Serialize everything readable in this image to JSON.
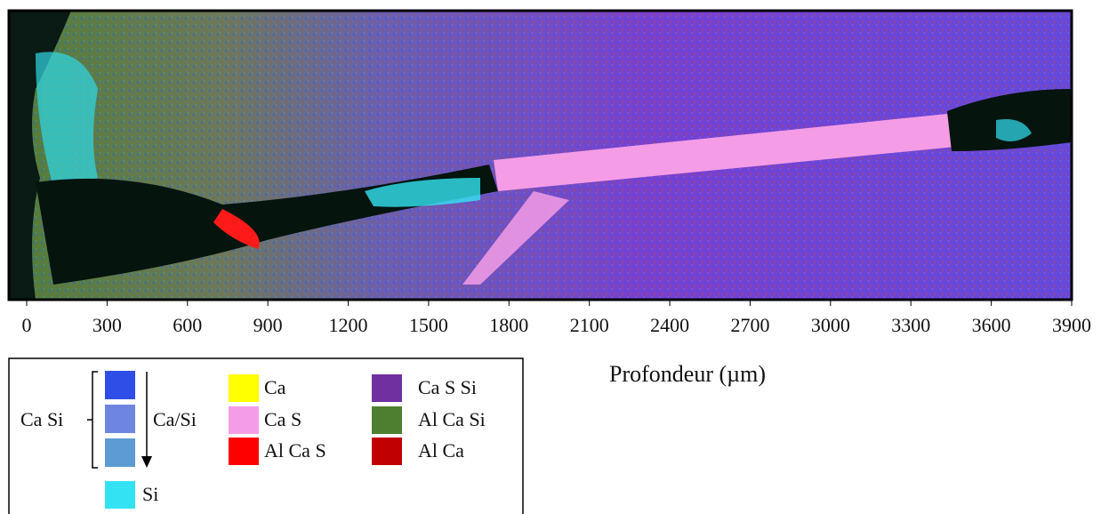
{
  "chart_data": {
    "type": "phase-map",
    "xlabel": "Profondeur (µm)",
    "xlim": [
      0,
      3900
    ],
    "xticks": [
      0,
      300,
      600,
      900,
      1200,
      1500,
      1800,
      2100,
      2400,
      2700,
      3000,
      3300,
      3600,
      3900
    ],
    "legend": {
      "group_label": "Ca Si",
      "ratio_label": "Ca/Si",
      "group_colors": [
        "#2f4ee8",
        "#6e86df",
        "#5c9bd4"
      ],
      "entries": [
        {
          "name": "Si",
          "color": "#33e3f3"
        },
        {
          "name": "Ca",
          "color": "#ffff00"
        },
        {
          "name": "Ca S",
          "color": "#f59ce6"
        },
        {
          "name": "Al Ca S",
          "color": "#ff0000"
        },
        {
          "name": "Ca S Si",
          "color": "#7030a0"
        },
        {
          "name": "Al Ca Si",
          "color": "#4e7f31"
        },
        {
          "name": "Al Ca",
          "color": "#c00000"
        }
      ]
    }
  }
}
